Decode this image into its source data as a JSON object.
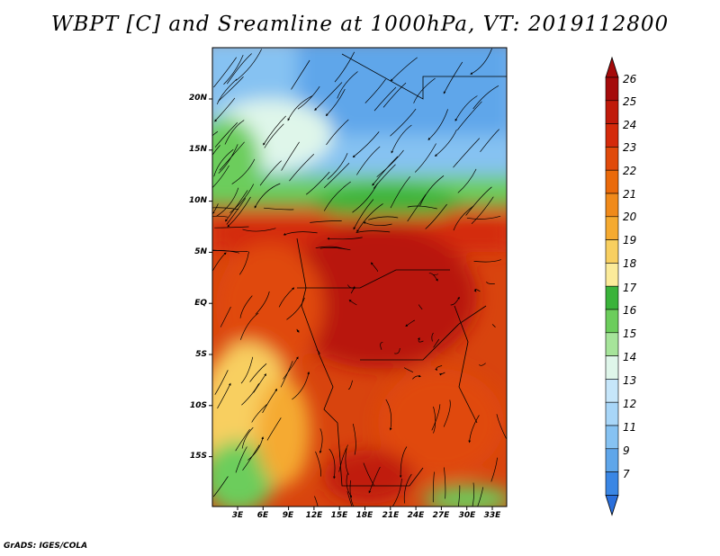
{
  "title": "WBPT [C] and Sreamline at 1000hPa, VT: 2019112800",
  "footer": "GrADS: IGES/COLA",
  "map": {
    "lat_labels": [
      "20N",
      "15N",
      "10N",
      "5N",
      "EQ",
      "5S",
      "10S",
      "15S"
    ],
    "lon_labels": [
      "3E",
      "6E",
      "9E",
      "12E",
      "15E",
      "18E",
      "21E",
      "24E",
      "27E",
      "30E",
      "33E"
    ]
  },
  "colorbar": {
    "levels": [
      "26",
      "25",
      "24",
      "23",
      "22",
      "21",
      "20",
      "19",
      "18",
      "17",
      "16",
      "15",
      "14",
      "13",
      "12",
      "11",
      "9",
      "7"
    ],
    "colors": [
      "#a50a0a",
      "#c01a0a",
      "#d42a0a",
      "#e04a0a",
      "#ea6a0a",
      "#f08a1a",
      "#f5aa30",
      "#f8cf60",
      "#fbeb9a",
      "#3ab33a",
      "#6ccd5c",
      "#a6e49a",
      "#dff6ea",
      "#c6e6fa",
      "#a8d6f8",
      "#86c2f2",
      "#5fa6ea",
      "#3a86e4"
    ],
    "top_color": "#a50a0a",
    "bottom_color": "#2a6fdc"
  }
}
